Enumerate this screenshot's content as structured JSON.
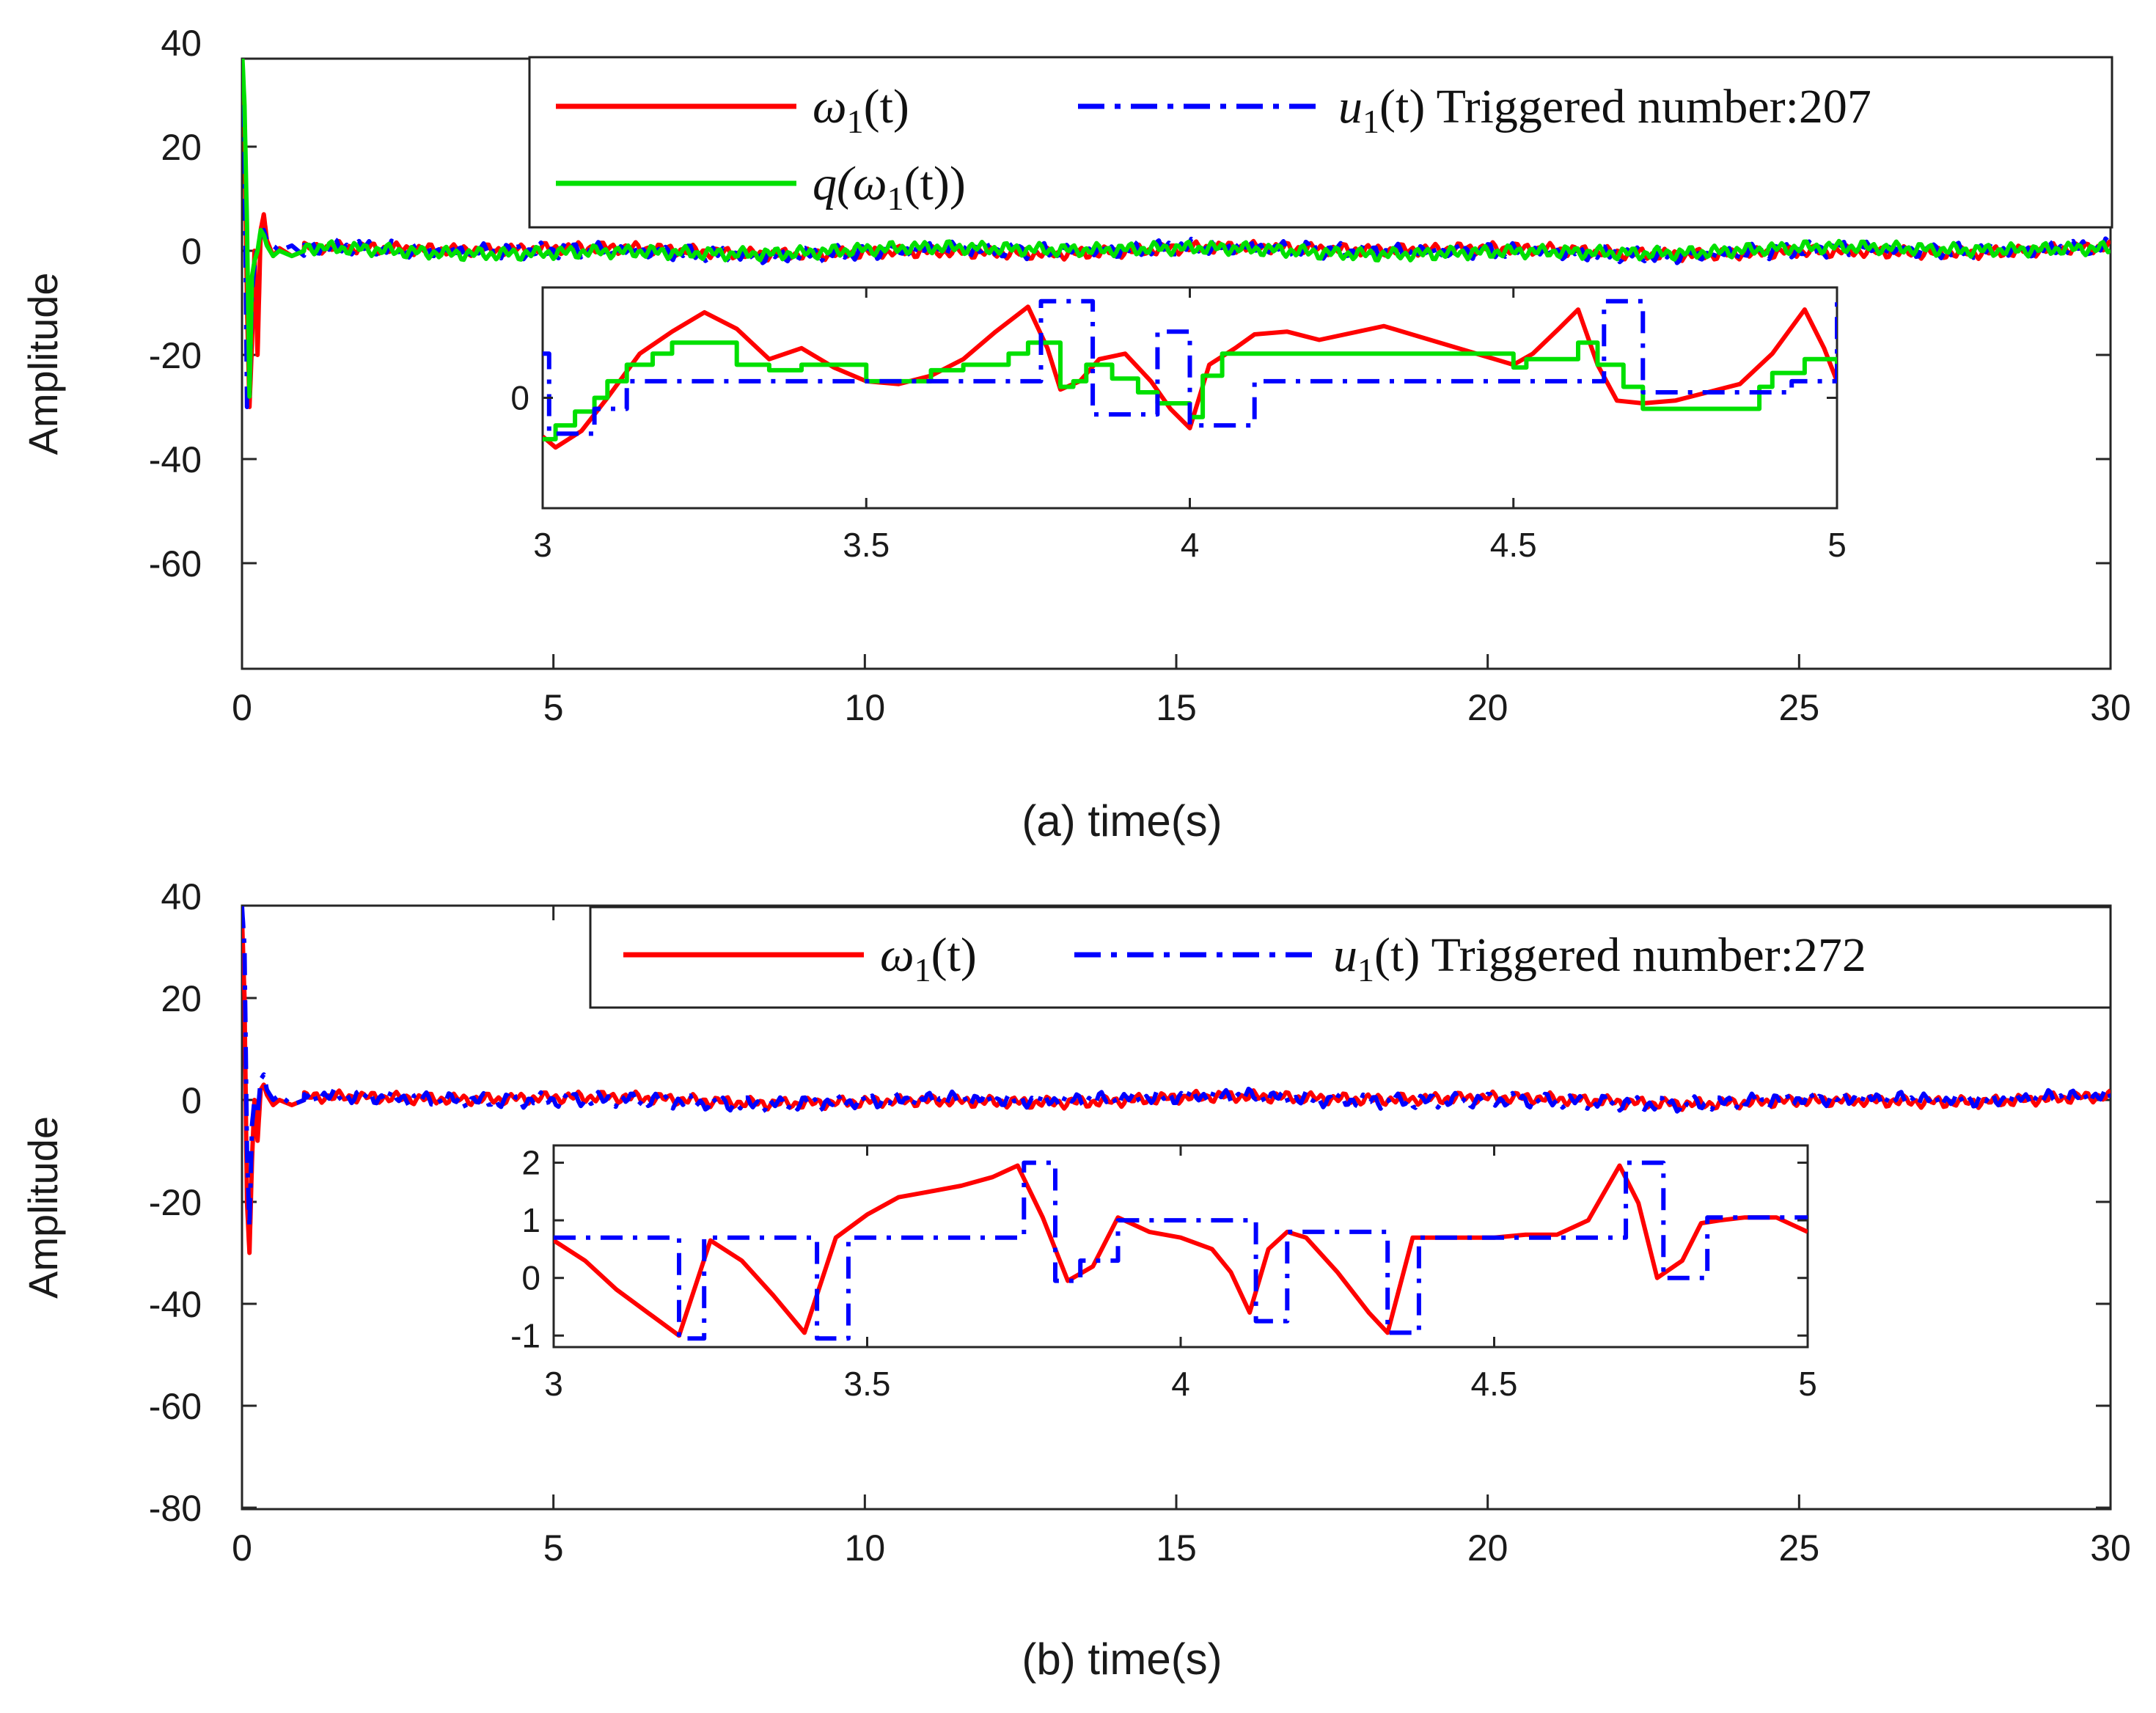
{
  "colors": {
    "omega": "#ff0000",
    "u": "#0000ff",
    "q": "#00e000",
    "axis": "#262626"
  },
  "chart_data": [
    {
      "id": "a",
      "type": "line",
      "caption": "(a)   time(s)",
      "ylabel": "Amplitude",
      "xlim": [
        0,
        30
      ],
      "ylim": [
        -80,
        40
      ],
      "xticks": [
        "0",
        "5",
        "10",
        "15",
        "20",
        "25",
        "30"
      ],
      "yticks": [
        "40",
        "20",
        "0",
        "-20",
        "-40",
        "-60"
      ],
      "legend": {
        "position": "top-right",
        "entries": [
          {
            "series": "omega",
            "label": "ω₁(t)",
            "math": "ω",
            "sub": "1",
            "tail": "(t)"
          },
          {
            "series": "u",
            "label": "u₁(t) Triggered number:207",
            "math": "u",
            "sub": "1",
            "tail": "(t) Triggered number:207"
          },
          {
            "series": "q",
            "label": "q(ω₁(t))",
            "math": "q(ω",
            "sub": "1",
            "tail": "(t))"
          }
        ]
      },
      "triggered_number": 207,
      "series": [
        {
          "key": "omega",
          "name": "ω₁(t)",
          "style": "solid",
          "transient_x": [
            0,
            0.04,
            0.08,
            0.12,
            0.16,
            0.2,
            0.25,
            0.3,
            0.35,
            0.4,
            0.5,
            0.6,
            0.8,
            1.0
          ],
          "transient_y": [
            36,
            25,
            -10,
            -30,
            -18,
            0,
            -20,
            4,
            7,
            2,
            -1,
            0.5,
            -1,
            0
          ],
          "steady_amp": 1.2
        },
        {
          "key": "u",
          "name": "u₁(t)",
          "style": "dashdot",
          "transient_x": [
            0,
            0.04,
            0.08,
            0.12,
            0.16,
            0.2,
            0.25,
            0.3,
            0.35,
            0.4,
            0.5,
            0.6,
            0.8,
            1.0
          ],
          "transient_y": [
            28,
            22,
            -30,
            -28,
            -8,
            -3,
            1,
            3,
            4,
            2,
            1,
            0,
            1,
            -1
          ],
          "steady_amp": 1.6
        },
        {
          "key": "q",
          "name": "q(ω₁(t))",
          "style": "solid",
          "transient_x": [
            0,
            0.04,
            0.08,
            0.12,
            0.16,
            0.2,
            0.25,
            0.3,
            0.35,
            0.4,
            0.5,
            0.6,
            0.8,
            1.0
          ],
          "transient_y": [
            39,
            28,
            5,
            -28,
            -5,
            -2,
            0,
            4,
            3,
            1,
            -1,
            0,
            -1,
            0
          ],
          "steady_amp": 1.3
        }
      ],
      "inset": {
        "xlim": [
          3,
          5
        ],
        "ylim": [
          -2,
          2
        ],
        "xticks": [
          "3",
          "3.5",
          "4",
          "4.5",
          "5"
        ],
        "yticks": [
          {
            "value": 0,
            "label": "0"
          }
        ],
        "series": [
          {
            "key": "omega",
            "x": [
              3,
              3.02,
              3.06,
              3.1,
              3.15,
              3.2,
              3.25,
              3.3,
              3.35,
              3.4,
              3.45,
              3.5,
              3.55,
              3.6,
              3.65,
              3.7,
              3.75,
              3.78,
              3.8,
              3.83,
              3.86,
              3.9,
              3.94,
              3.97,
              4.0,
              4.03,
              4.07,
              4.1,
              4.15,
              4.2,
              4.3,
              4.4,
              4.5,
              4.53,
              4.57,
              4.6,
              4.63,
              4.66,
              4.7,
              4.75,
              4.8,
              4.85,
              4.9,
              4.95,
              4.98,
              5.0
            ],
            "y": [
              -0.7,
              -0.9,
              -0.6,
              0.0,
              0.8,
              1.2,
              1.55,
              1.25,
              0.7,
              0.9,
              0.55,
              0.3,
              0.25,
              0.4,
              0.7,
              1.2,
              1.65,
              0.9,
              0.15,
              0.3,
              0.7,
              0.8,
              0.3,
              -0.2,
              -0.55,
              0.6,
              0.9,
              1.15,
              1.2,
              1.05,
              1.3,
              0.95,
              0.6,
              0.8,
              1.25,
              1.6,
              0.6,
              -0.05,
              -0.1,
              -0.05,
              0.1,
              0.25,
              0.8,
              1.6,
              0.9,
              0.3
            ]
          },
          {
            "key": "q",
            "x": [
              3,
              3.02,
              3.05,
              3.08,
              3.1,
              3.13,
              3.17,
              3.2,
              3.3,
              3.35,
              3.4,
              3.5,
              3.6,
              3.65,
              3.72,
              3.75,
              3.8,
              3.82,
              3.84,
              3.88,
              3.92,
              3.95,
              4.0,
              4.02,
              4.05,
              4.5,
              4.52,
              4.6,
              4.63,
              4.67,
              4.7,
              4.82,
              4.88,
              4.9,
              4.95,
              5.0
            ],
            "y": [
              -0.75,
              -0.5,
              -0.25,
              0.0,
              0.3,
              0.6,
              0.8,
              1.0,
              0.6,
              0.5,
              0.6,
              0.3,
              0.5,
              0.6,
              0.8,
              1.0,
              0.2,
              0.3,
              0.6,
              0.35,
              0.1,
              -0.1,
              -0.35,
              0.4,
              0.8,
              0.55,
              0.7,
              1.0,
              0.6,
              0.2,
              -0.2,
              -0.2,
              0.2,
              0.45,
              0.7,
              0.4
            ]
          },
          {
            "key": "u",
            "x": [
              3,
              3.01,
              3.03,
              3.06,
              3.08,
              3.13,
              3.2,
              3.3,
              3.4,
              3.5,
              3.6,
              3.7,
              3.75,
              3.77,
              3.78,
              3.8,
              3.85,
              3.91,
              3.95,
              3.99,
              4.0,
              4.03,
              4.1,
              4.2,
              4.3,
              4.4,
              4.5,
              4.62,
              4.64,
              4.66,
              4.67,
              4.7,
              4.8,
              4.9,
              4.93,
              4.98,
              5.0
            ],
            "y": [
              0.8,
              -0.65,
              -0.65,
              -0.65,
              -0.2,
              0.3,
              0.3,
              0.3,
              0.3,
              0.3,
              0.3,
              0.3,
              0.3,
              1.75,
              1.75,
              1.75,
              -0.3,
              -0.3,
              1.2,
              1.2,
              -0.5,
              -0.5,
              0.3,
              0.3,
              0.3,
              0.3,
              0.3,
              0.3,
              1.75,
              1.75,
              1.75,
              0.1,
              0.1,
              0.1,
              0.3,
              0.3,
              1.75
            ]
          }
        ]
      }
    },
    {
      "id": "b",
      "type": "line",
      "caption": "(b)   time(s)",
      "ylabel": "Amplitude",
      "xlim": [
        0,
        30
      ],
      "ylim": [
        -80,
        40
      ],
      "xticks": [
        "0",
        "5",
        "10",
        "15",
        "20",
        "25",
        "30"
      ],
      "yticks": [
        "40",
        "20",
        "0",
        "-20",
        "-40",
        "-60",
        "-80"
      ],
      "legend": {
        "position": "top-right",
        "entries": [
          {
            "series": "omega",
            "label": "ω₁(t)",
            "math": "ω",
            "sub": "1",
            "tail": "(t)"
          },
          {
            "series": "u",
            "label": "u₁(t) Triggered number:272",
            "math": "u",
            "sub": "1",
            "tail": "(t) Triggered number:272"
          }
        ]
      },
      "triggered_number": 272,
      "series": [
        {
          "key": "omega",
          "name": "ω₁(t)",
          "style": "solid",
          "transient_x": [
            0,
            0.04,
            0.08,
            0.12,
            0.16,
            0.2,
            0.25,
            0.3,
            0.35,
            0.4,
            0.5,
            0.6,
            0.8,
            1.0
          ],
          "transient_y": [
            36,
            20,
            -20,
            -30,
            -12,
            0,
            -8,
            2,
            3,
            1,
            -1,
            0,
            -1,
            0
          ],
          "steady_amp": 1.2
        },
        {
          "key": "u",
          "name": "u₁(t)",
          "style": "dashdot",
          "transient_x": [
            0,
            0.04,
            0.08,
            0.12,
            0.16,
            0.2,
            0.25,
            0.3,
            0.35,
            0.4,
            0.5,
            0.6,
            0.8,
            1.0
          ],
          "transient_y": [
            38,
            30,
            -10,
            -25,
            -5,
            0,
            -3,
            4,
            5,
            2,
            0,
            1,
            -1,
            0
          ],
          "steady_amp": 1.5
        }
      ],
      "inset": {
        "xlim": [
          3,
          5
        ],
        "ylim": [
          -1.2,
          2.3
        ],
        "xticks": [
          "3",
          "3.5",
          "4",
          "4.5",
          "5"
        ],
        "yticks": [
          {
            "value": 2,
            "label": "2"
          },
          {
            "value": 1,
            "label": "1"
          },
          {
            "value": 0,
            "label": "0"
          },
          {
            "value": -1,
            "label": "-1"
          }
        ],
        "series": [
          {
            "key": "omega",
            "x": [
              3,
              3.05,
              3.1,
              3.15,
              3.2,
              3.25,
              3.3,
              3.35,
              3.4,
              3.45,
              3.5,
              3.55,
              3.6,
              3.65,
              3.7,
              3.74,
              3.78,
              3.82,
              3.86,
              3.9,
              3.95,
              4.0,
              4.05,
              4.08,
              4.11,
              4.14,
              4.17,
              4.2,
              4.25,
              4.3,
              4.33,
              4.37,
              4.4,
              4.5,
              4.55,
              4.6,
              4.65,
              4.7,
              4.73,
              4.76,
              4.8,
              4.83,
              4.86,
              4.9,
              4.95,
              5.0
            ],
            "y": [
              0.65,
              0.3,
              -0.2,
              -0.6,
              -1.0,
              0.65,
              0.3,
              -0.3,
              -0.95,
              0.7,
              1.1,
              1.4,
              1.5,
              1.6,
              1.75,
              1.95,
              1.05,
              -0.05,
              0.2,
              1.05,
              0.8,
              0.7,
              0.5,
              0.1,
              -0.6,
              0.5,
              0.8,
              0.7,
              0.1,
              -0.6,
              -0.95,
              0.7,
              0.7,
              0.7,
              0.75,
              0.75,
              1.0,
              1.95,
              1.3,
              0.0,
              0.3,
              0.95,
              1.0,
              1.05,
              1.05,
              0.8
            ]
          },
          {
            "key": "u",
            "x": [
              3,
              3.2,
              3.2,
              3.24,
              3.24,
              3.42,
              3.42,
              3.47,
              3.47,
              3.75,
              3.75,
              3.8,
              3.8,
              3.84,
              3.84,
              3.9,
              3.9,
              4.12,
              4.12,
              4.17,
              4.17,
              4.33,
              4.33,
              4.38,
              4.38,
              4.71,
              4.71,
              4.77,
              4.77,
              4.84,
              4.84,
              5.0
            ],
            "y": [
              0.7,
              0.7,
              -1.05,
              -1.05,
              0.7,
              0.7,
              -1.05,
              -1.05,
              0.7,
              0.7,
              2.0,
              2.0,
              -0.05,
              -0.05,
              0.3,
              0.3,
              1.0,
              1.0,
              -0.75,
              -0.75,
              0.8,
              0.8,
              -0.95,
              -0.95,
              0.7,
              0.7,
              2.0,
              2.0,
              0.0,
              0.0,
              1.05,
              1.05
            ]
          }
        ]
      }
    }
  ]
}
